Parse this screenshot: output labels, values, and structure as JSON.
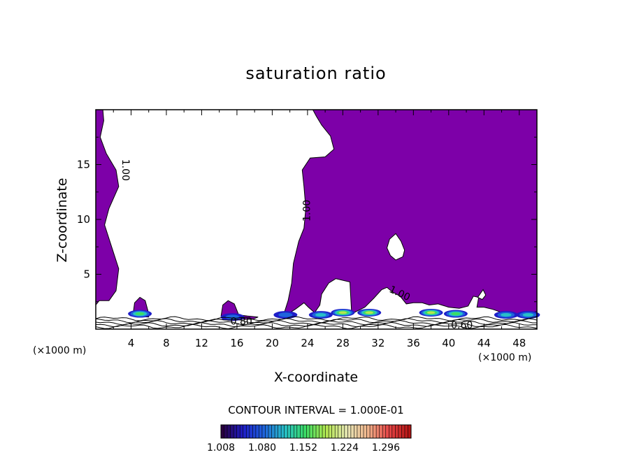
{
  "chart_data": {
    "type": "heatmap",
    "title": "saturation ratio",
    "xlabel": "X-coordinate",
    "ylabel": "Z-coordinate",
    "x_unit": "(×1000 m)",
    "xlim": [
      0,
      50
    ],
    "ylim": [
      0,
      20
    ],
    "x_ticks": [
      4,
      8,
      12,
      16,
      20,
      24,
      28,
      32,
      36,
      40,
      44,
      48
    ],
    "y_ticks": [
      5,
      10,
      15
    ],
    "contour_interval_text": "CONTOUR INTERVAL = 1.000E-01",
    "contour_labels": [
      {
        "text": "1.00",
        "x": 3.0,
        "z": 14.5,
        "rotate": 90
      },
      {
        "text": "1.00",
        "x": 24.3,
        "z": 10.8,
        "rotate": -90
      },
      {
        "text": "1.00",
        "x": 34.3,
        "z": 3.0,
        "rotate": 25
      },
      {
        "text": "0.80",
        "x": 16.5,
        "z": 0.4,
        "rotate": 0
      },
      {
        "text": "0.60",
        "x": 41.5,
        "z": 0.05,
        "rotate": 0
      }
    ],
    "supersaturated_color": "#7d00a8",
    "colorbar": {
      "min": 1.008,
      "max": 1.34,
      "tick_labels": [
        "1.008",
        "1.080",
        "1.152",
        "1.224",
        "1.296"
      ],
      "colors": [
        "#2a0040",
        "#1e1ec8",
        "#1e64dc",
        "#28c0c8",
        "#3cdc64",
        "#b4e650",
        "#e6e6b4",
        "#f0b48c",
        "#e64646",
        "#b41414"
      ]
    },
    "hotspots": [
      {
        "x": 5.0,
        "z": 1.4,
        "level": 0.55
      },
      {
        "x": 15.5,
        "z": 1.1,
        "level": 0.2
      },
      {
        "x": 21.5,
        "z": 1.3,
        "level": 0.3
      },
      {
        "x": 25.5,
        "z": 1.3,
        "level": 0.4
      },
      {
        "x": 28.0,
        "z": 1.5,
        "level": 0.6
      },
      {
        "x": 31.0,
        "z": 1.5,
        "level": 0.65
      },
      {
        "x": 38.0,
        "z": 1.5,
        "level": 0.6
      },
      {
        "x": 40.8,
        "z": 1.4,
        "level": 0.55
      },
      {
        "x": 46.5,
        "z": 1.3,
        "level": 0.4
      },
      {
        "x": 49.0,
        "z": 1.3,
        "level": 0.35
      }
    ]
  }
}
